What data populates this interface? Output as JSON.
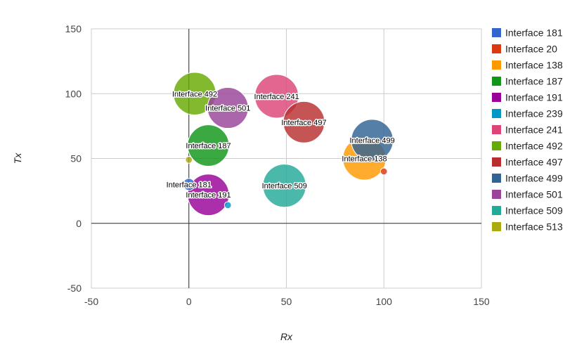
{
  "chart_data": {
    "type": "scatter",
    "subtype": "bubble",
    "xlabel": "Rx",
    "ylabel": "Tx",
    "xlim": [
      -50,
      150
    ],
    "ylim": [
      -50,
      150
    ],
    "x_ticks": [
      -50,
      0,
      50,
      100,
      150
    ],
    "y_ticks": [
      -50,
      0,
      50,
      100,
      150
    ],
    "grid": true,
    "legend_position": "right",
    "series": [
      {
        "name": "Interface 181",
        "color": "#3366cc",
        "points": [
          {
            "x": 0,
            "y": 30,
            "size": 3,
            "label": "Interface 181"
          }
        ]
      },
      {
        "name": "Interface 20",
        "color": "#dc3912",
        "points": [
          {
            "x": 100,
            "y": 40,
            "size": 1,
            "label": ""
          }
        ]
      },
      {
        "name": "Interface 138",
        "color": "#ff9900",
        "points": [
          {
            "x": 90,
            "y": 50,
            "size": 39,
            "label": "Interface 138"
          }
        ]
      },
      {
        "name": "Interface 187",
        "color": "#109618",
        "points": [
          {
            "x": 10,
            "y": 60,
            "size": 36,
            "label": "Interface 187"
          }
        ]
      },
      {
        "name": "Interface 191",
        "color": "#990099",
        "points": [
          {
            "x": 10,
            "y": 22,
            "size": 36,
            "label": "Interface 191"
          }
        ]
      },
      {
        "name": "Interface 239",
        "color": "#0099c6",
        "points": [
          {
            "x": 20,
            "y": 14,
            "size": 1,
            "label": ""
          }
        ]
      },
      {
        "name": "Interface 241",
        "color": "#dd4477",
        "points": [
          {
            "x": 45,
            "y": 98,
            "size": 40,
            "label": "Interface 241"
          }
        ]
      },
      {
        "name": "Interface 492",
        "color": "#66aa00",
        "points": [
          {
            "x": 3,
            "y": 100,
            "size": 38,
            "label": "Interface 492"
          }
        ]
      },
      {
        "name": "Interface 497",
        "color": "#b82e2e",
        "points": [
          {
            "x": 59,
            "y": 78,
            "size": 36,
            "label": "Interface 497"
          }
        ]
      },
      {
        "name": "Interface 499",
        "color": "#316395",
        "points": [
          {
            "x": 94,
            "y": 64,
            "size": 37,
            "label": "Interface 499"
          }
        ]
      },
      {
        "name": "Interface 501",
        "color": "#994499",
        "points": [
          {
            "x": 20,
            "y": 89,
            "size": 35,
            "label": "Interface 501"
          }
        ]
      },
      {
        "name": "Interface 509",
        "color": "#22aa99",
        "points": [
          {
            "x": 49,
            "y": 29,
            "size": 39,
            "label": "Interface 509"
          }
        ]
      },
      {
        "name": "Interface 513",
        "color": "#aaaa11",
        "points": [
          {
            "x": 0,
            "y": 49,
            "size": 1,
            "label": ""
          }
        ]
      }
    ]
  }
}
